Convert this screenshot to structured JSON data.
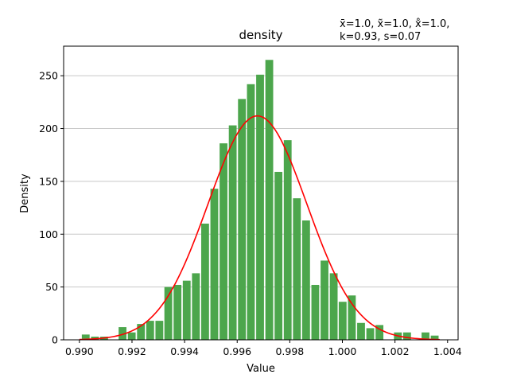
{
  "chart_data": {
    "type": "bar",
    "title": "density",
    "stats_line1": "x̄=1.0, x̃=1.0, x̊=1.0,",
    "stats_line2": "k=0.93, s=0.07",
    "xlabel": "Value",
    "ylabel": "Density",
    "xlim": [
      0.9894,
      1.0044
    ],
    "ylim": [
      0,
      278
    ],
    "x_ticks": [
      "0.990",
      "0.992",
      "0.994",
      "0.996",
      "0.998",
      "1.000",
      "1.002",
      "1.004"
    ],
    "y_ticks": [
      "0",
      "50",
      "100",
      "150",
      "200",
      "250"
    ],
    "grid": "horizontal",
    "bar_color": "#4CA64C",
    "curve_color": "#FF0000",
    "bins": {
      "centers": [
        0.99024,
        0.99059,
        0.99094,
        0.99129,
        0.99164,
        0.99199,
        0.99234,
        0.99269,
        0.99304,
        0.99338,
        0.99373,
        0.99408,
        0.99443,
        0.99478,
        0.99513,
        0.99548,
        0.99583,
        0.99618,
        0.99652,
        0.99687,
        0.99722,
        0.99757,
        0.99792,
        0.99827,
        0.99862,
        0.99897,
        0.99932,
        0.99967,
        1.00001,
        1.00036,
        1.00071,
        1.00106,
        1.00141,
        1.00176,
        1.00211,
        1.00246,
        1.00281,
        1.00316,
        1.00351
      ],
      "values": [
        5,
        3,
        3,
        0,
        12,
        7,
        15,
        18,
        18,
        50,
        52,
        56,
        63,
        110,
        143,
        186,
        203,
        228,
        242,
        251,
        265,
        159,
        189,
        134,
        113,
        52,
        75,
        63,
        36,
        42,
        16,
        11,
        14,
        0,
        7,
        7,
        0,
        7,
        4
      ]
    },
    "fit_curve": {
      "mean": 0.99677,
      "std": 0.00188,
      "peak": 212
    }
  }
}
